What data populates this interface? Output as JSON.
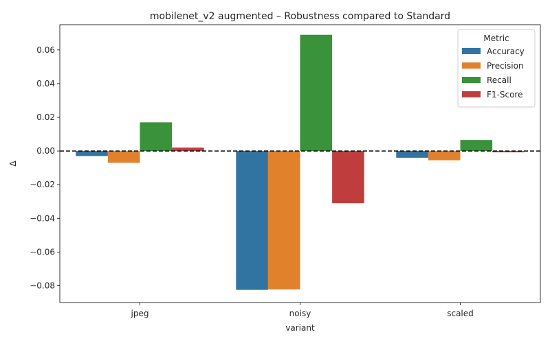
{
  "chart_data": {
    "type": "bar",
    "title": "mobilenet_v2 augmented – Robustness compared to Standard",
    "xlabel": "variant",
    "ylabel": "Δ",
    "categories": [
      "jpeg",
      "noisy",
      "scaled"
    ],
    "ylim": [
      -0.09,
      0.075
    ],
    "yticks": [
      -0.08,
      -0.06,
      -0.04,
      -0.02,
      0.0,
      0.02,
      0.04,
      0.06
    ],
    "ytick_labels": [
      "−0.08",
      "−0.06",
      "−0.04",
      "−0.02",
      "0.00",
      "0.02",
      "0.04",
      "0.06"
    ],
    "reference_line": {
      "y": 0,
      "style": "dashed",
      "color": "#000000"
    },
    "legend": {
      "title": "Metric",
      "placement": "top-right"
    },
    "series": [
      {
        "name": "Accuracy",
        "color": "#3274a1",
        "values": [
          -0.003,
          -0.0825,
          -0.004
        ]
      },
      {
        "name": "Precision",
        "color": "#e1812c",
        "values": [
          -0.007,
          -0.0822,
          -0.0055
        ]
      },
      {
        "name": "Recall",
        "color": "#3a923a",
        "values": [
          0.017,
          0.069,
          0.0065
        ]
      },
      {
        "name": "F1-Score",
        "color": "#c03d3e",
        "values": [
          0.002,
          -0.031,
          -0.0008
        ]
      }
    ],
    "grid": false
  }
}
